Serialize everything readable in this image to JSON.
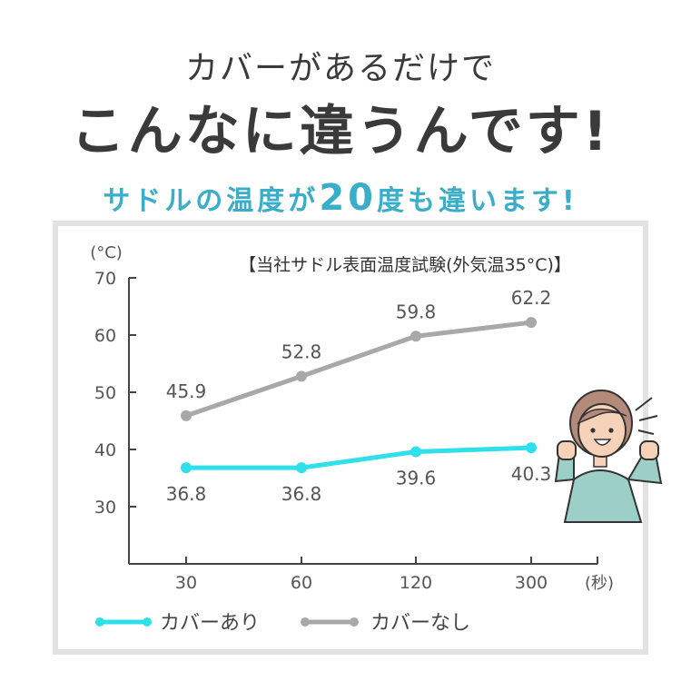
{
  "header": {
    "line1": "カバーがあるだけで",
    "line2": "こんなに違うんです!",
    "subtitle_pre": "サドルの温度が",
    "subtitle_num": "20",
    "subtitle_post": "度も違います!"
  },
  "chart_data": {
    "type": "line",
    "title": "【当社サドル表面温度試験(外気温35°C)】",
    "ylabel": "(°C)",
    "xlabel": "(秒)",
    "categories": [
      "30",
      "60",
      "120",
      "300"
    ],
    "ylim": [
      20,
      70
    ],
    "yticks": [
      "30",
      "40",
      "50",
      "60",
      "70"
    ],
    "series": [
      {
        "name": "カバーあり",
        "values": [
          36.8,
          36.8,
          39.6,
          40.3
        ],
        "labels": [
          "36.8",
          "36.8",
          "39.6",
          "40.3"
        ],
        "color": "#2fe0ea"
      },
      {
        "name": "カバーなし",
        "values": [
          45.9,
          52.8,
          59.8,
          62.2
        ],
        "labels": [
          "45.9",
          "52.8",
          "59.8",
          "62.2"
        ],
        "color": "#a8a8a8"
      }
    ]
  },
  "colors": {
    "accent": "#3aaec9",
    "text": "#3a3a3a",
    "frame": "#e2e2e2"
  },
  "icons": {
    "person": "cheering-woman-illustration"
  }
}
